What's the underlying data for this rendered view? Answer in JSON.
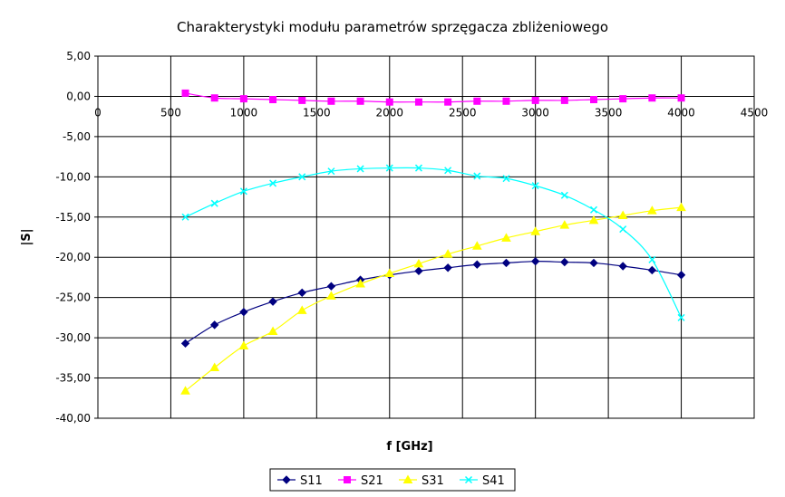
{
  "chart_data": {
    "type": "line",
    "title": "Charakterystyki modułu parametrów sprzęgacza zbliżeniowego",
    "xlabel": "f [GHz]",
    "ylabel": "|S|",
    "xlim": [
      0,
      4500
    ],
    "ylim": [
      -40,
      5
    ],
    "xticks": [
      "0",
      "500",
      "1000",
      "1500",
      "2000",
      "2500",
      "3000",
      "3500",
      "4000",
      "4500"
    ],
    "yticks": [
      "5,00",
      "0,00",
      "-5,00",
      "-10,00",
      "-15,00",
      "-20,00",
      "-25,00",
      "-30,00",
      "-35,00",
      "-40,00"
    ],
    "grid": true,
    "legend_position": "bottom",
    "x": [
      600,
      800,
      1000,
      1200,
      1400,
      1600,
      1800,
      2000,
      2200,
      2400,
      2600,
      2800,
      3000,
      3200,
      3400,
      3600,
      3800,
      4000
    ],
    "series": [
      {
        "name": "S11",
        "color": "#000080",
        "marker": "diamond",
        "values": [
          -30.7,
          -28.4,
          -26.8,
          -25.5,
          -24.4,
          -23.6,
          -22.8,
          -22.2,
          -21.7,
          -21.3,
          -20.9,
          -20.7,
          -20.5,
          -20.6,
          -20.7,
          -21.1,
          -21.6,
          -22.2
        ]
      },
      {
        "name": "S21",
        "color": "#ff00ff",
        "marker": "square",
        "values": [
          0.4,
          -0.2,
          -0.3,
          -0.4,
          -0.5,
          -0.6,
          -0.6,
          -0.7,
          -0.7,
          -0.7,
          -0.6,
          -0.6,
          -0.5,
          -0.5,
          -0.4,
          -0.3,
          -0.2,
          -0.2
        ]
      },
      {
        "name": "S31",
        "color": "#ffff00",
        "marker": "triangle",
        "values": [
          -36.6,
          -33.7,
          -31.0,
          -29.2,
          -26.6,
          -24.8,
          -23.3,
          -22.0,
          -20.8,
          -19.6,
          -18.6,
          -17.6,
          -16.8,
          -16.0,
          -15.4,
          -14.8,
          -14.2,
          -13.8
        ]
      },
      {
        "name": "S41",
        "color": "#00ffff",
        "marker": "x",
        "values": [
          -15.0,
          -13.3,
          -11.8,
          -10.8,
          -10.0,
          -9.3,
          -9.0,
          -8.9,
          -8.9,
          -9.2,
          -9.9,
          -10.2,
          -11.1,
          -12.3,
          -14.1,
          -16.5,
          -20.3,
          -27.5
        ]
      }
    ]
  }
}
